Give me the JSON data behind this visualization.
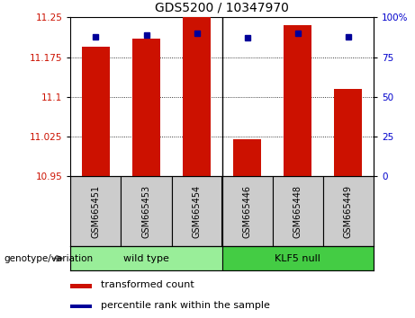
{
  "title": "GDS5200 / 10347970",
  "samples": [
    "GSM665451",
    "GSM665453",
    "GSM665454",
    "GSM665446",
    "GSM665448",
    "GSM665449"
  ],
  "transformed_counts": [
    11.195,
    11.21,
    11.25,
    11.02,
    11.235,
    11.115
  ],
  "percentile_ranks": [
    88,
    89,
    90,
    87,
    90,
    88
  ],
  "y_min": 10.95,
  "y_max": 11.25,
  "y_ticks": [
    10.95,
    11.025,
    11.1,
    11.175,
    11.25
  ],
  "y_tick_labels": [
    "10.95",
    "11.025",
    "11.1",
    "11.175",
    "11.25"
  ],
  "right_y_ticks": [
    0,
    25,
    50,
    75,
    100
  ],
  "right_y_tick_labels": [
    "0",
    "25",
    "50",
    "75",
    "100%"
  ],
  "bar_color": "#CC1100",
  "dot_color": "#000099",
  "left_axis_color": "#CC1100",
  "right_axis_color": "#0000CC",
  "bg_color": "#FFFFFF",
  "wildtype_color": "#99EE99",
  "klf5_color": "#44CC44",
  "sample_box_color": "#CCCCCC",
  "legend_bar_label": "transformed count",
  "legend_dot_label": "percentile rank within the sample",
  "genotype_label": "genotype/variation",
  "wt_label": "wild type",
  "klf5_label": "KLF5 null",
  "n_wildtype": 3,
  "n_total": 6
}
